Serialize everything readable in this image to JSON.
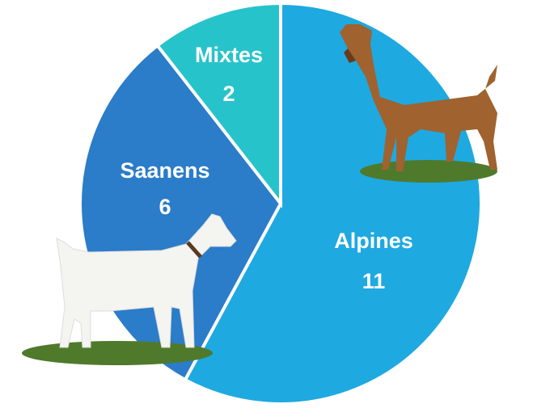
{
  "chart_data": {
    "type": "pie",
    "categories": [
      "Alpines",
      "Saanens",
      "Mixtes"
    ],
    "values": [
      11,
      6,
      2
    ],
    "colors": [
      "#1ea9e1",
      "#2b7cc9",
      "#27c3cb"
    ]
  }
}
